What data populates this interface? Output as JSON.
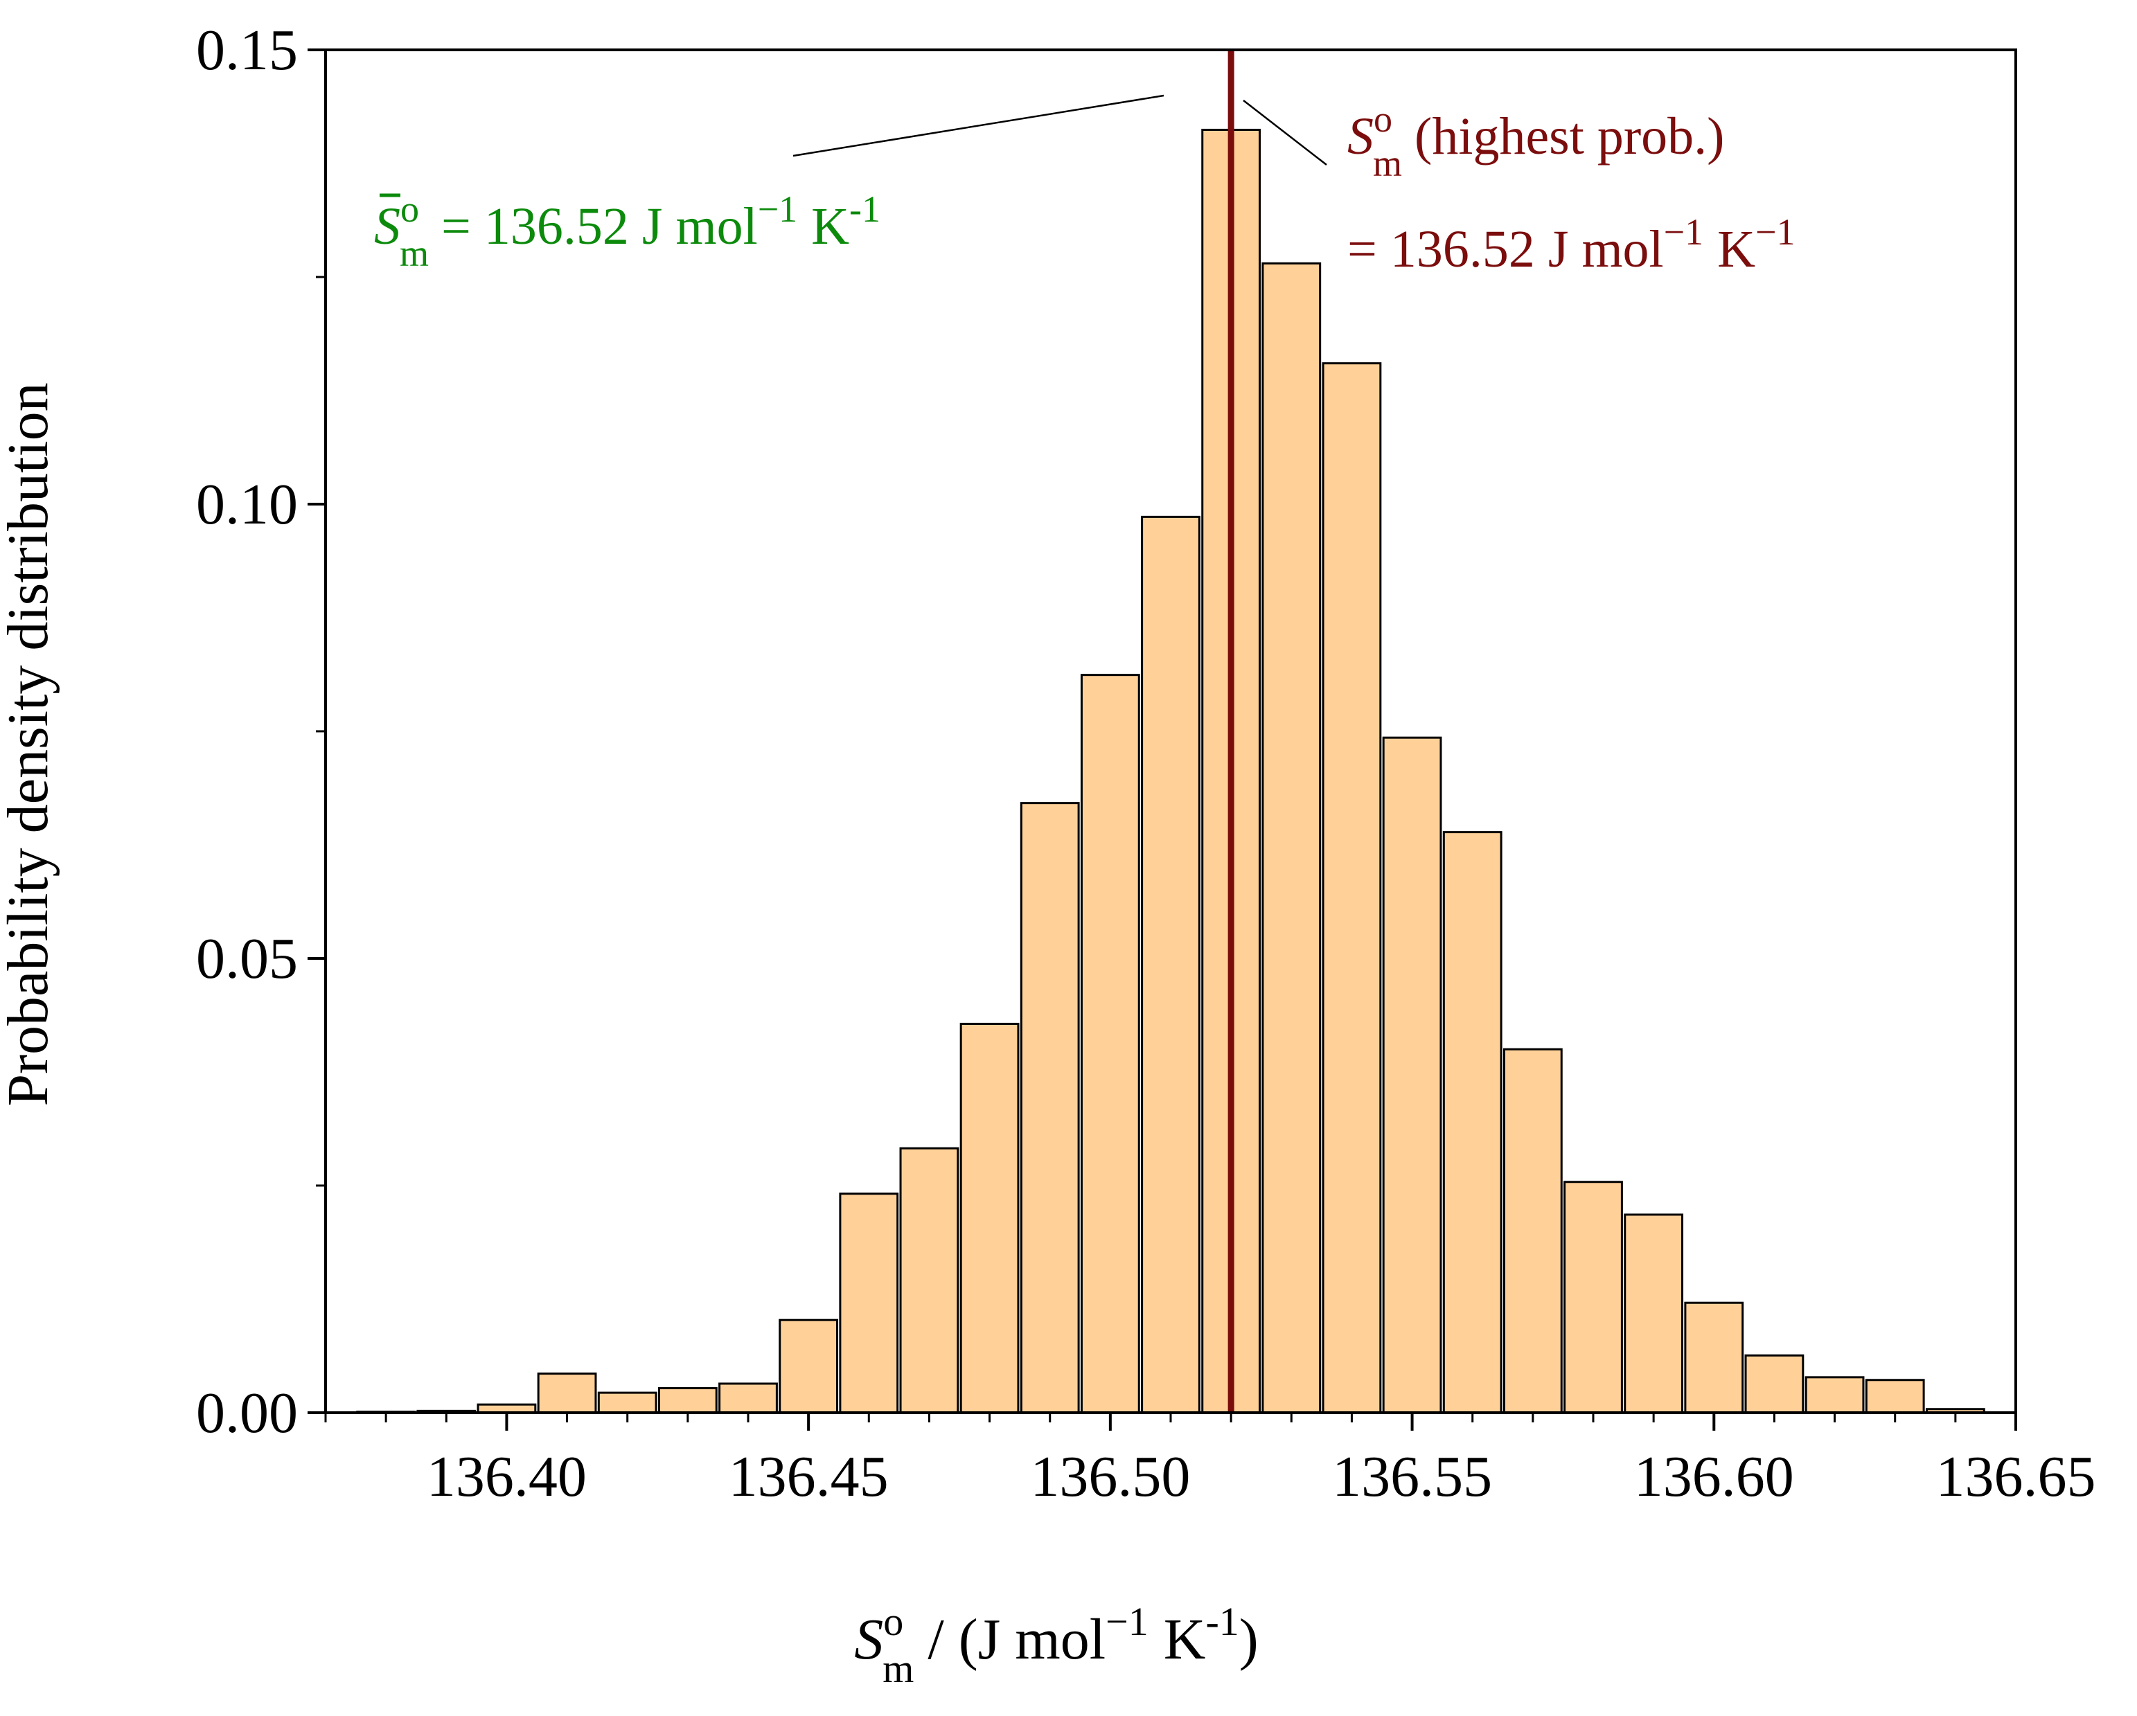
{
  "chart_data": {
    "type": "bar",
    "title": "",
    "xlabel": {
      "symbol": "S",
      "superscript": "o",
      "subscript": "m",
      "rest": "/ (J mol",
      "exp1": "−1",
      "mid": "K",
      "exp2": "-1",
      "close": ")"
    },
    "ylabel": "Probability density distribution",
    "xlim": [
      136.37,
      136.65
    ],
    "ylim": [
      0.0,
      0.15
    ],
    "x_ticks": [
      136.4,
      136.45,
      136.5,
      136.55,
      136.6,
      136.65
    ],
    "x_tick_labels": [
      "136.40",
      "136.45",
      "136.50",
      "136.55",
      "136.60",
      "136.65"
    ],
    "y_ticks": [
      0.0,
      0.05,
      0.1,
      0.15
    ],
    "y_tick_labels": [
      "0.00",
      "0.05",
      "0.10",
      "0.15"
    ],
    "bin_width": 0.0095,
    "bar_color": "#FFD199",
    "bar_edge_color": "#000000",
    "bins": [
      {
        "x": 136.38,
        "value": 0.0001
      },
      {
        "x": 136.39,
        "value": 0.0002
      },
      {
        "x": 136.4,
        "value": 0.0009
      },
      {
        "x": 136.41,
        "value": 0.0043
      },
      {
        "x": 136.42,
        "value": 0.0022
      },
      {
        "x": 136.43,
        "value": 0.0027
      },
      {
        "x": 136.44,
        "value": 0.0032
      },
      {
        "x": 136.45,
        "value": 0.0102
      },
      {
        "x": 136.46,
        "value": 0.0241
      },
      {
        "x": 136.47,
        "value": 0.0291
      },
      {
        "x": 136.48,
        "value": 0.0428
      },
      {
        "x": 136.49,
        "value": 0.0671
      },
      {
        "x": 136.5,
        "value": 0.0812
      },
      {
        "x": 136.51,
        "value": 0.0986
      },
      {
        "x": 136.52,
        "value": 0.1412
      },
      {
        "x": 136.53,
        "value": 0.1265
      },
      {
        "x": 136.54,
        "value": 0.1155
      },
      {
        "x": 136.55,
        "value": 0.0743
      },
      {
        "x": 136.56,
        "value": 0.0639
      },
      {
        "x": 136.57,
        "value": 0.04
      },
      {
        "x": 136.58,
        "value": 0.0254
      },
      {
        "x": 136.59,
        "value": 0.0218
      },
      {
        "x": 136.6,
        "value": 0.0121
      },
      {
        "x": 136.61,
        "value": 0.0063
      },
      {
        "x": 136.62,
        "value": 0.0039
      },
      {
        "x": 136.63,
        "value": 0.0036
      },
      {
        "x": 136.64,
        "value": 0.0004
      }
    ],
    "vline": {
      "x": 136.52,
      "color": "#7B0D0D"
    },
    "annotations": {
      "mean": {
        "symbol": "S",
        "superscript": "o",
        "subscript": "m",
        "text": "= 136.52 J mol",
        "exp1": "−1",
        "mid": "K",
        "exp2": "-1",
        "color": "#0C8A0C"
      },
      "mode": {
        "symbol": "S",
        "superscript": "o",
        "subscript": "m",
        "line1": "(highest prob.)",
        "line2": "= 136.52 J mol",
        "exp1": "−1",
        "mid": "K",
        "exp2": "−1",
        "color": "#7B0D0D"
      }
    }
  }
}
